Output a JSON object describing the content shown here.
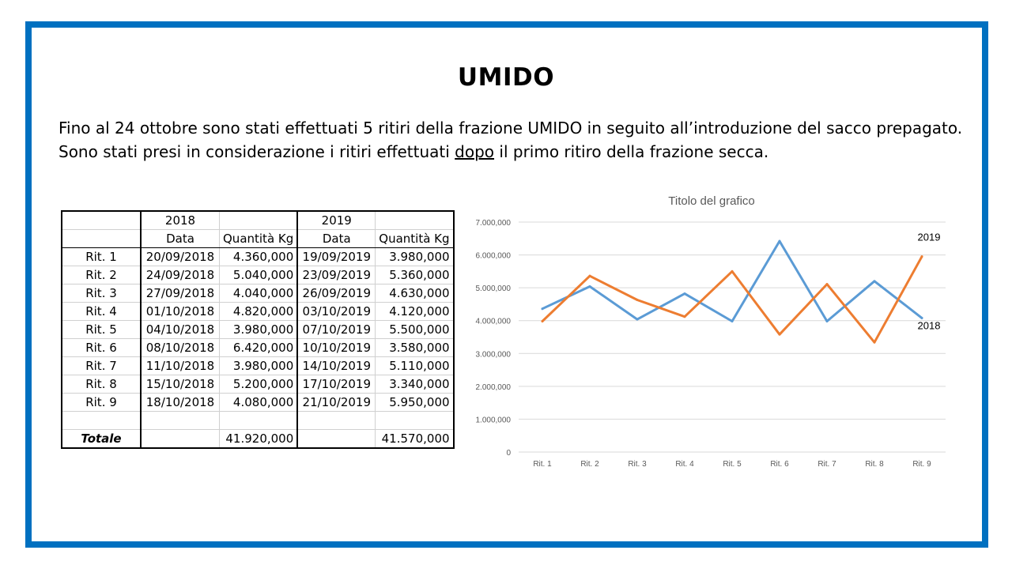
{
  "title": "UMIDO",
  "intro": {
    "line1": "Fino al 24 ottobre sono stati effettuati 5 ritiri della frazione UMIDO in seguito all’introduzione del sacco prepagato.",
    "line2_before": "Sono stati presi in considerazione i ritiri effettuati ",
    "line2_underlined": "dopo",
    "line2_after": " il primo ritiro della frazione secca."
  },
  "table": {
    "year_a": "2018",
    "year_b": "2019",
    "col_date": "Data",
    "col_qty": "Quantità Kg",
    "rows": [
      {
        "label": "Rit. 1",
        "date_a": "20/09/2018",
        "qty_a": "4.360,000",
        "date_b": "19/09/2019",
        "qty_b": "3.980,000"
      },
      {
        "label": "Rit. 2",
        "date_a": "24/09/2018",
        "qty_a": "5.040,000",
        "date_b": "23/09/2019",
        "qty_b": "5.360,000"
      },
      {
        "label": "Rit. 3",
        "date_a": "27/09/2018",
        "qty_a": "4.040,000",
        "date_b": "26/09/2019",
        "qty_b": "4.630,000"
      },
      {
        "label": "Rit. 4",
        "date_a": "01/10/2018",
        "qty_a": "4.820,000",
        "date_b": "03/10/2019",
        "qty_b": "4.120,000"
      },
      {
        "label": "Rit. 5",
        "date_a": "04/10/2018",
        "qty_a": "3.980,000",
        "date_b": "07/10/2019",
        "qty_b": "5.500,000"
      },
      {
        "label": "Rit. 6",
        "date_a": "08/10/2018",
        "qty_a": "6.420,000",
        "date_b": "10/10/2019",
        "qty_b": "3.580,000"
      },
      {
        "label": "Rit. 7",
        "date_a": "11/10/2018",
        "qty_a": "3.980,000",
        "date_b": "14/10/2019",
        "qty_b": "5.110,000"
      },
      {
        "label": "Rit. 8",
        "date_a": "15/10/2018",
        "qty_a": "5.200,000",
        "date_b": "17/10/2019",
        "qty_b": "3.340,000"
      },
      {
        "label": "Rit. 9",
        "date_a": "18/10/2018",
        "qty_a": "4.080,000",
        "date_b": "21/10/2019",
        "qty_b": "5.950,000"
      }
    ],
    "total_label": "Totale",
    "total_a": "41.920,000",
    "total_b": "41.570,000"
  },
  "chart_data": {
    "type": "line",
    "title": "Titolo del grafico",
    "categories": [
      "Rit. 1",
      "Rit. 2",
      "Rit. 3",
      "Rit. 4",
      "Rit. 5",
      "Rit. 6",
      "Rit. 7",
      "Rit. 8",
      "Rit. 9"
    ],
    "y_ticks": [
      "0",
      "1.000,000",
      "2.000,000",
      "3.000,000",
      "4.000,000",
      "5.000,000",
      "6.000,000",
      "7.000,000"
    ],
    "ylim": [
      0,
      7000
    ],
    "grid": true,
    "series": [
      {
        "name": "2018",
        "color": "#5b9bd5",
        "values": [
          4360,
          5040,
          4040,
          4820,
          3980,
          6420,
          3980,
          5200,
          4080
        ]
      },
      {
        "name": "2019",
        "color": "#ed7d31",
        "values": [
          3980,
          5360,
          4630,
          4120,
          5500,
          3580,
          5110,
          3340,
          5950
        ]
      }
    ]
  },
  "colors": {
    "frame": "#0070c0",
    "grid": "#d9d9d9"
  }
}
